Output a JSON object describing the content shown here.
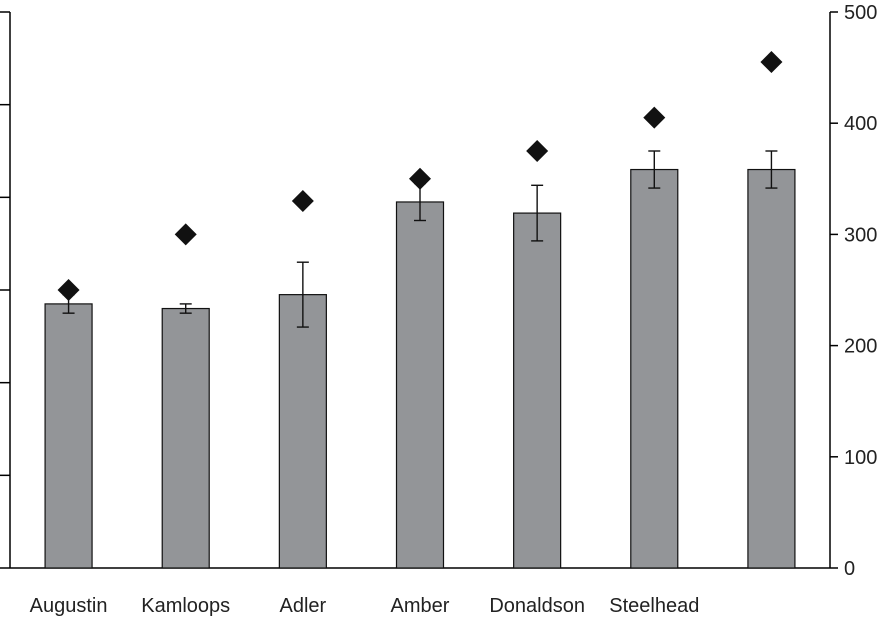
{
  "chart_data": {
    "type": "bar",
    "title": "",
    "xlabel": "",
    "ylabel": "",
    "categories": [
      "Augustin",
      "Kamloops",
      "Adler",
      "Amber",
      "Donaldson",
      "Steelhead",
      ""
    ],
    "series": [
      {
        "type": "bar",
        "axis": "left",
        "values": [
          2.85,
          2.8,
          2.95,
          3.95,
          3.83,
          4.3,
          4.3
        ],
        "error": [
          0.1,
          0.05,
          0.35,
          0.2,
          0.3,
          0.2,
          0.2
        ]
      },
      {
        "type": "scatter",
        "marker": "diamond",
        "axis": "right",
        "values": [
          250,
          300,
          330,
          350,
          375,
          405,
          455
        ]
      }
    ],
    "y_left": {
      "ylim": [
        0,
        6
      ],
      "ticks": [
        0,
        1,
        2,
        3,
        4,
        5,
        6
      ],
      "tick_labels_visible": false
    },
    "y_right": {
      "ylim": [
        0,
        500
      ],
      "ticks": [
        0,
        100,
        200,
        300,
        400,
        500
      ],
      "tick_labels": [
        "0",
        "100",
        "200",
        "300",
        "400",
        "500"
      ]
    },
    "grid": false,
    "legend": "none",
    "colors": {
      "bar": "#939598",
      "bar_edge": "#111111",
      "marker": "#111111",
      "axis": "#000000"
    }
  }
}
